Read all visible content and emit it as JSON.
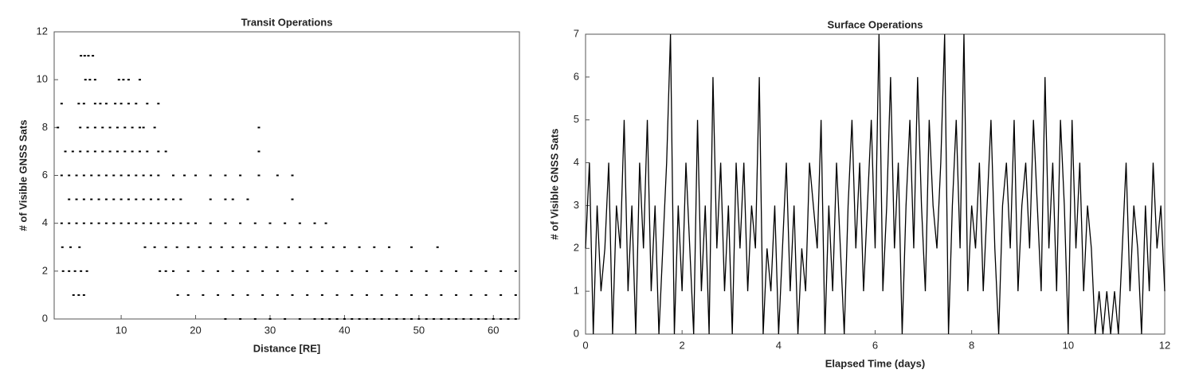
{
  "chart_data": [
    {
      "type": "scatter",
      "title": "Transit Operations",
      "x_label": "Distance [RE]",
      "y_label": "# of Visible GNSS Sats",
      "xlim": [
        1,
        63.5
      ],
      "xticks": [
        10,
        20,
        30,
        40,
        50,
        60
      ],
      "ylim": [
        0,
        12
      ],
      "yticks": [
        0,
        2,
        4,
        6,
        8,
        10,
        12
      ],
      "color": "#000000",
      "x": [
        24,
        26,
        28,
        30,
        32,
        34,
        36,
        37,
        38,
        39,
        40,
        41,
        42,
        43,
        44,
        45,
        46,
        47,
        48,
        49,
        50,
        51,
        52,
        53,
        54,
        55,
        56,
        57,
        58,
        59,
        60,
        61,
        62,
        63,
        3.6,
        4.3,
        5,
        17.6,
        19,
        21,
        23,
        25,
        27,
        29,
        31,
        33,
        35,
        37,
        39,
        41,
        43,
        45,
        47,
        49,
        51,
        53,
        55,
        57,
        59,
        61,
        63,
        2.2,
        3,
        3.8,
        4.6,
        5.4,
        15.2,
        16,
        17,
        19,
        21,
        23,
        25,
        27,
        29,
        31,
        33,
        35,
        37,
        39,
        41,
        43,
        45,
        47,
        49,
        51,
        53,
        55,
        57,
        59,
        61,
        63,
        2.1,
        3.2,
        4.4,
        13.2,
        14.5,
        16,
        17.5,
        19,
        20.5,
        22,
        23.5,
        25,
        26.5,
        28,
        29.5,
        31,
        32.5,
        34,
        35.5,
        37,
        38.5,
        40,
        42,
        44,
        46,
        49,
        52.5,
        2,
        3,
        4,
        5,
        6,
        7,
        8,
        9,
        10,
        11,
        12,
        13,
        14,
        15,
        16,
        17,
        18,
        19,
        20,
        22,
        24,
        26,
        28,
        30,
        32,
        34,
        36,
        37.5,
        3,
        4,
        5,
        6,
        7,
        8,
        9,
        10,
        11,
        12,
        13,
        14,
        15,
        16,
        17,
        18,
        22,
        24,
        25,
        27,
        33,
        2,
        3,
        4,
        5,
        6,
        7,
        8,
        9,
        10,
        11,
        12,
        13,
        14,
        15,
        17,
        18.5,
        20,
        22,
        24,
        26,
        28.5,
        31,
        33,
        2.5,
        3.5,
        4.5,
        5.5,
        6.5,
        7.5,
        8.5,
        9.5,
        10.5,
        11.5,
        12.5,
        13.5,
        15,
        16,
        28.5,
        1.5,
        4.5,
        5.5,
        6.5,
        7.5,
        8.5,
        9.5,
        10.5,
        11.5,
        12.5,
        13,
        14.5,
        28.5,
        2,
        4.3,
        5,
        6.5,
        7.2,
        8,
        9.2,
        10,
        11,
        12,
        13.5,
        15,
        5.2,
        5.8,
        6.5,
        9.7,
        10.3,
        11,
        12.5,
        4.6,
        5.1,
        5.6,
        6.2
      ],
      "values": [
        0,
        0,
        0,
        0,
        0,
        0,
        0,
        0,
        0,
        0,
        0,
        0,
        0,
        0,
        0,
        0,
        0,
        0,
        0,
        0,
        0,
        0,
        0,
        0,
        0,
        0,
        0,
        0,
        0,
        0,
        0,
        0,
        0,
        0,
        1,
        1,
        1,
        1,
        1,
        1,
        1,
        1,
        1,
        1,
        1,
        1,
        1,
        1,
        1,
        1,
        1,
        1,
        1,
        1,
        1,
        1,
        1,
        1,
        1,
        1,
        1,
        2,
        2,
        2,
        2,
        2,
        2,
        2,
        2,
        2,
        2,
        2,
        2,
        2,
        2,
        2,
        2,
        2,
        2,
        2,
        2,
        2,
        2,
        2,
        2,
        2,
        2,
        2,
        2,
        2,
        2,
        2,
        3,
        3,
        3,
        3,
        3,
        3,
        3,
        3,
        3,
        3,
        3,
        3,
        3,
        3,
        3,
        3,
        3,
        3,
        3,
        3,
        3,
        3,
        3,
        3,
        3,
        3,
        3,
        4,
        4,
        4,
        4,
        4,
        4,
        4,
        4,
        4,
        4,
        4,
        4,
        4,
        4,
        4,
        4,
        4,
        4,
        4,
        4,
        4,
        4,
        4,
        4,
        4,
        4,
        4,
        4,
        5,
        5,
        5,
        5,
        5,
        5,
        5,
        5,
        5,
        5,
        5,
        5,
        5,
        5,
        5,
        5,
        5,
        5,
        5,
        5,
        5,
        6,
        6,
        6,
        6,
        6,
        6,
        6,
        6,
        6,
        6,
        6,
        6,
        6,
        6,
        6,
        6,
        6,
        6,
        6,
        6,
        6,
        6,
        6,
        7,
        7,
        7,
        7,
        7,
        7,
        7,
        7,
        7,
        7,
        7,
        7,
        7,
        7,
        7,
        8,
        8,
        8,
        8,
        8,
        8,
        8,
        8,
        8,
        8,
        8,
        8,
        8,
        9,
        9,
        9,
        9,
        9,
        9,
        9,
        9,
        9,
        9,
        9,
        9,
        10,
        10,
        10,
        10,
        10,
        10,
        10,
        11,
        11,
        11,
        11
      ]
    },
    {
      "type": "line",
      "title": "Surface Operations",
      "x_label": "Elapsed Time (days)",
      "y_label": "# of Visible GNSS Sats",
      "xlim": [
        0,
        12
      ],
      "xticks": [
        0,
        2,
        4,
        6,
        8,
        10,
        12
      ],
      "ylim": [
        0,
        7
      ],
      "yticks": [
        0,
        1,
        2,
        3,
        4,
        5,
        6,
        7
      ],
      "color": "#000000",
      "x": [
        0,
        0.08,
        0.16,
        0.24,
        0.32,
        0.4,
        0.48,
        0.56,
        0.64,
        0.72,
        0.8,
        0.88,
        0.96,
        1.04,
        1.12,
        1.2,
        1.28,
        1.36,
        1.44,
        1.52,
        1.6,
        1.68,
        1.76,
        1.84,
        1.92,
        2,
        2.08,
        2.16,
        2.24,
        2.32,
        2.4,
        2.48,
        2.56,
        2.64,
        2.72,
        2.8,
        2.88,
        2.96,
        3.04,
        3.12,
        3.2,
        3.28,
        3.36,
        3.44,
        3.52,
        3.6,
        3.68,
        3.76,
        3.84,
        3.92,
        4,
        4.08,
        4.16,
        4.24,
        4.32,
        4.4,
        4.48,
        4.56,
        4.64,
        4.72,
        4.8,
        4.88,
        4.96,
        5.04,
        5.12,
        5.2,
        5.28,
        5.36,
        5.44,
        5.52,
        5.6,
        5.68,
        5.76,
        5.84,
        5.92,
        6,
        6.08,
        6.16,
        6.24,
        6.32,
        6.4,
        6.48,
        6.56,
        6.64,
        6.72,
        6.8,
        6.88,
        6.96,
        7.04,
        7.12,
        7.2,
        7.28,
        7.36,
        7.44,
        7.52,
        7.6,
        7.68,
        7.76,
        7.84,
        7.92,
        8,
        8.08,
        8.16,
        8.24,
        8.32,
        8.4,
        8.48,
        8.56,
        8.64,
        8.72,
        8.8,
        8.88,
        8.96,
        9.04,
        9.12,
        9.2,
        9.28,
        9.36,
        9.44,
        9.52,
        9.6,
        9.68,
        9.76,
        9.84,
        9.92,
        10,
        10.08,
        10.16,
        10.24,
        10.32,
        10.4,
        10.48,
        10.56,
        10.64,
        10.72,
        10.8,
        10.88,
        10.96,
        11.04,
        11.12,
        11.2,
        11.28,
        11.36,
        11.44,
        11.52,
        11.6,
        11.68,
        11.76,
        11.84,
        11.92,
        12
      ],
      "values": [
        2,
        4,
        0,
        3,
        1,
        2,
        4,
        0,
        3,
        2,
        5,
        1,
        3,
        0,
        4,
        2,
        5,
        1,
        3,
        0,
        2,
        4,
        7,
        0,
        3,
        1,
        4,
        2,
        0,
        5,
        1,
        3,
        0,
        6,
        2,
        4,
        1,
        3,
        0,
        4,
        2,
        4,
        1,
        3,
        2,
        6,
        0,
        2,
        1,
        3,
        0,
        2,
        4,
        1,
        3,
        0,
        2,
        1,
        4,
        3,
        2,
        5,
        0,
        3,
        1,
        4,
        2,
        0,
        3,
        5,
        2,
        4,
        1,
        3,
        5,
        2,
        7,
        1,
        3,
        6,
        2,
        4,
        0,
        3,
        5,
        2,
        6,
        3,
        1,
        5,
        3,
        2,
        4,
        7,
        0,
        3,
        5,
        2,
        7,
        1,
        3,
        2,
        4,
        1,
        3,
        5,
        2,
        0,
        3,
        4,
        2,
        5,
        1,
        3,
        4,
        2,
        5,
        3,
        1,
        6,
        2,
        4,
        1,
        5,
        3,
        0,
        5,
        2,
        4,
        1,
        3,
        2,
        0,
        1,
        0,
        1,
        0,
        1,
        0,
        2,
        4,
        1,
        3,
        2,
        0,
        3,
        1,
        4,
        2,
        3,
        1
      ]
    }
  ]
}
